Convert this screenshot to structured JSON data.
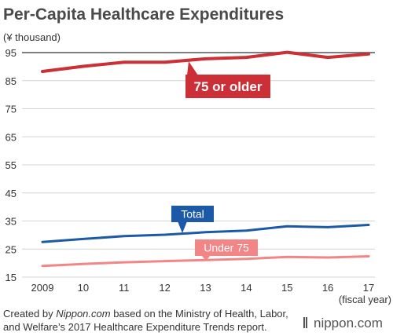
{
  "chart_data": {
    "type": "line",
    "title": "Per-Capita Healthcare Expenditures",
    "ylabel": "(¥ thousand)",
    "xlabel": "(fiscal year)",
    "x": [
      "2009",
      "10",
      "11",
      "12",
      "13",
      "14",
      "15",
      "16",
      "17"
    ],
    "y_ticks": [
      "95",
      "85",
      "75",
      "65",
      "55",
      "45",
      "35",
      "25",
      "15"
    ],
    "ylim": [
      15,
      95
    ],
    "grid": true,
    "legend": "inline-labels",
    "series": [
      {
        "name": "75 or older",
        "color": "#cc2f36",
        "values": [
          88.3,
          90.1,
          91.6,
          91.6,
          92.8,
          93.3,
          95.1,
          93.3,
          94.5
        ]
      },
      {
        "name": "Total",
        "color": "#1c5aa8",
        "values": [
          27.5,
          28.6,
          29.6,
          30.1,
          31.0,
          31.6,
          33.1,
          32.8,
          33.6
        ]
      },
      {
        "name": "Under 75",
        "color": "#f28585",
        "values": [
          19.0,
          19.7,
          20.3,
          20.7,
          21.1,
          21.5,
          22.2,
          22.0,
          22.4
        ]
      }
    ]
  },
  "footer": {
    "line1_prefix": "Created by ",
    "line1_source": "Nippon.com",
    "line1_suffix": " based on the Ministry of Health, Labor,",
    "line2": "and Welfare’s 2017 Healthcare Expenditure Trends report."
  },
  "brand": {
    "text": "nippon.com",
    "icon": "nippon-logo-icon"
  }
}
